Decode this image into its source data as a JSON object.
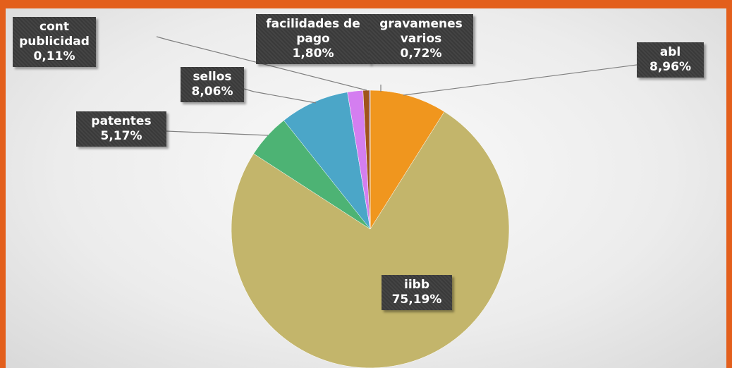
{
  "chart_data": {
    "type": "pie",
    "categories": [
      "abl",
      "iibb",
      "patentes",
      "sellos",
      "facilidades de pago",
      "gravamenes varios",
      "cont publicidad"
    ],
    "values": [
      8.96,
      75.19,
      5.17,
      8.06,
      1.8,
      0.72,
      0.11
    ],
    "value_labels": [
      "8,96%",
      "75,19%",
      "5,17%",
      "8,06%",
      "1,80%",
      "0,72%",
      "0,11%"
    ],
    "colors": [
      "#f0961e",
      "#c3b56b",
      "#4db374",
      "#4ba6c8",
      "#d47ef0",
      "#a0541a",
      "#6b4a9a"
    ]
  }
}
